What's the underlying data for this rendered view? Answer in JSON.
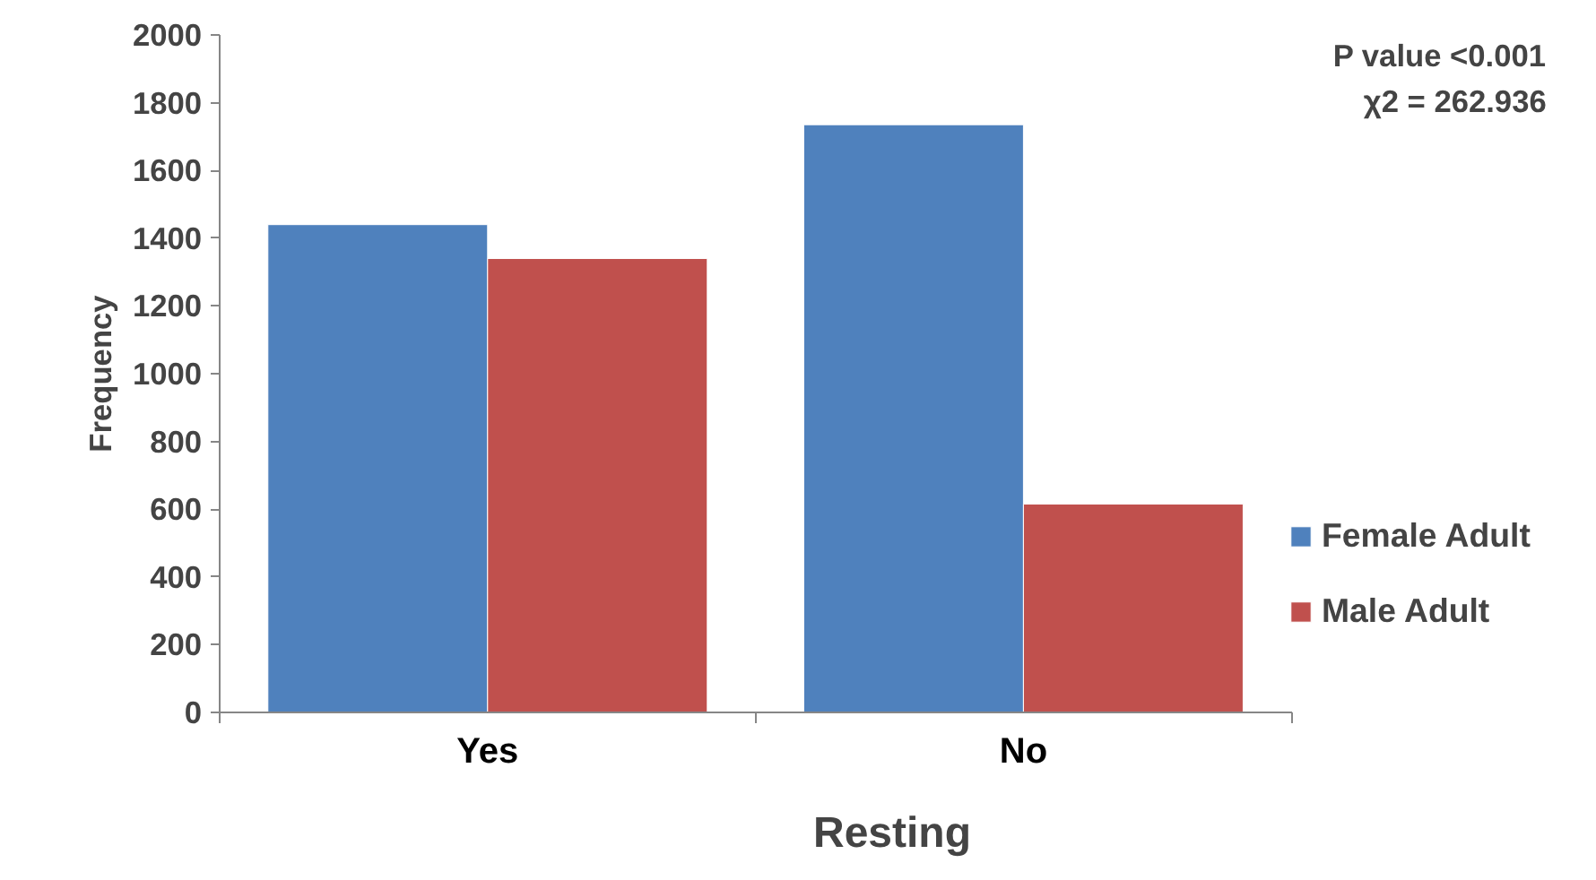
{
  "chart_data": {
    "type": "bar",
    "xlabel": "Resting",
    "ylabel": "Frequency",
    "categories": [
      "Yes",
      "No"
    ],
    "series": [
      {
        "name": "Female Adult",
        "color": "#4f81bd",
        "values": [
          1440,
          1735
        ]
      },
      {
        "name": "Male Adult",
        "color": "#c0504d",
        "values": [
          1340,
          615
        ]
      }
    ],
    "ylim": [
      0,
      2000
    ],
    "yticks": [
      0,
      200,
      400,
      600,
      800,
      1000,
      1200,
      1400,
      1600,
      1800,
      2000
    ],
    "grid": false,
    "legend": "right",
    "annotations": [
      "P value <0.001",
      "χ2 = 262.936"
    ]
  }
}
